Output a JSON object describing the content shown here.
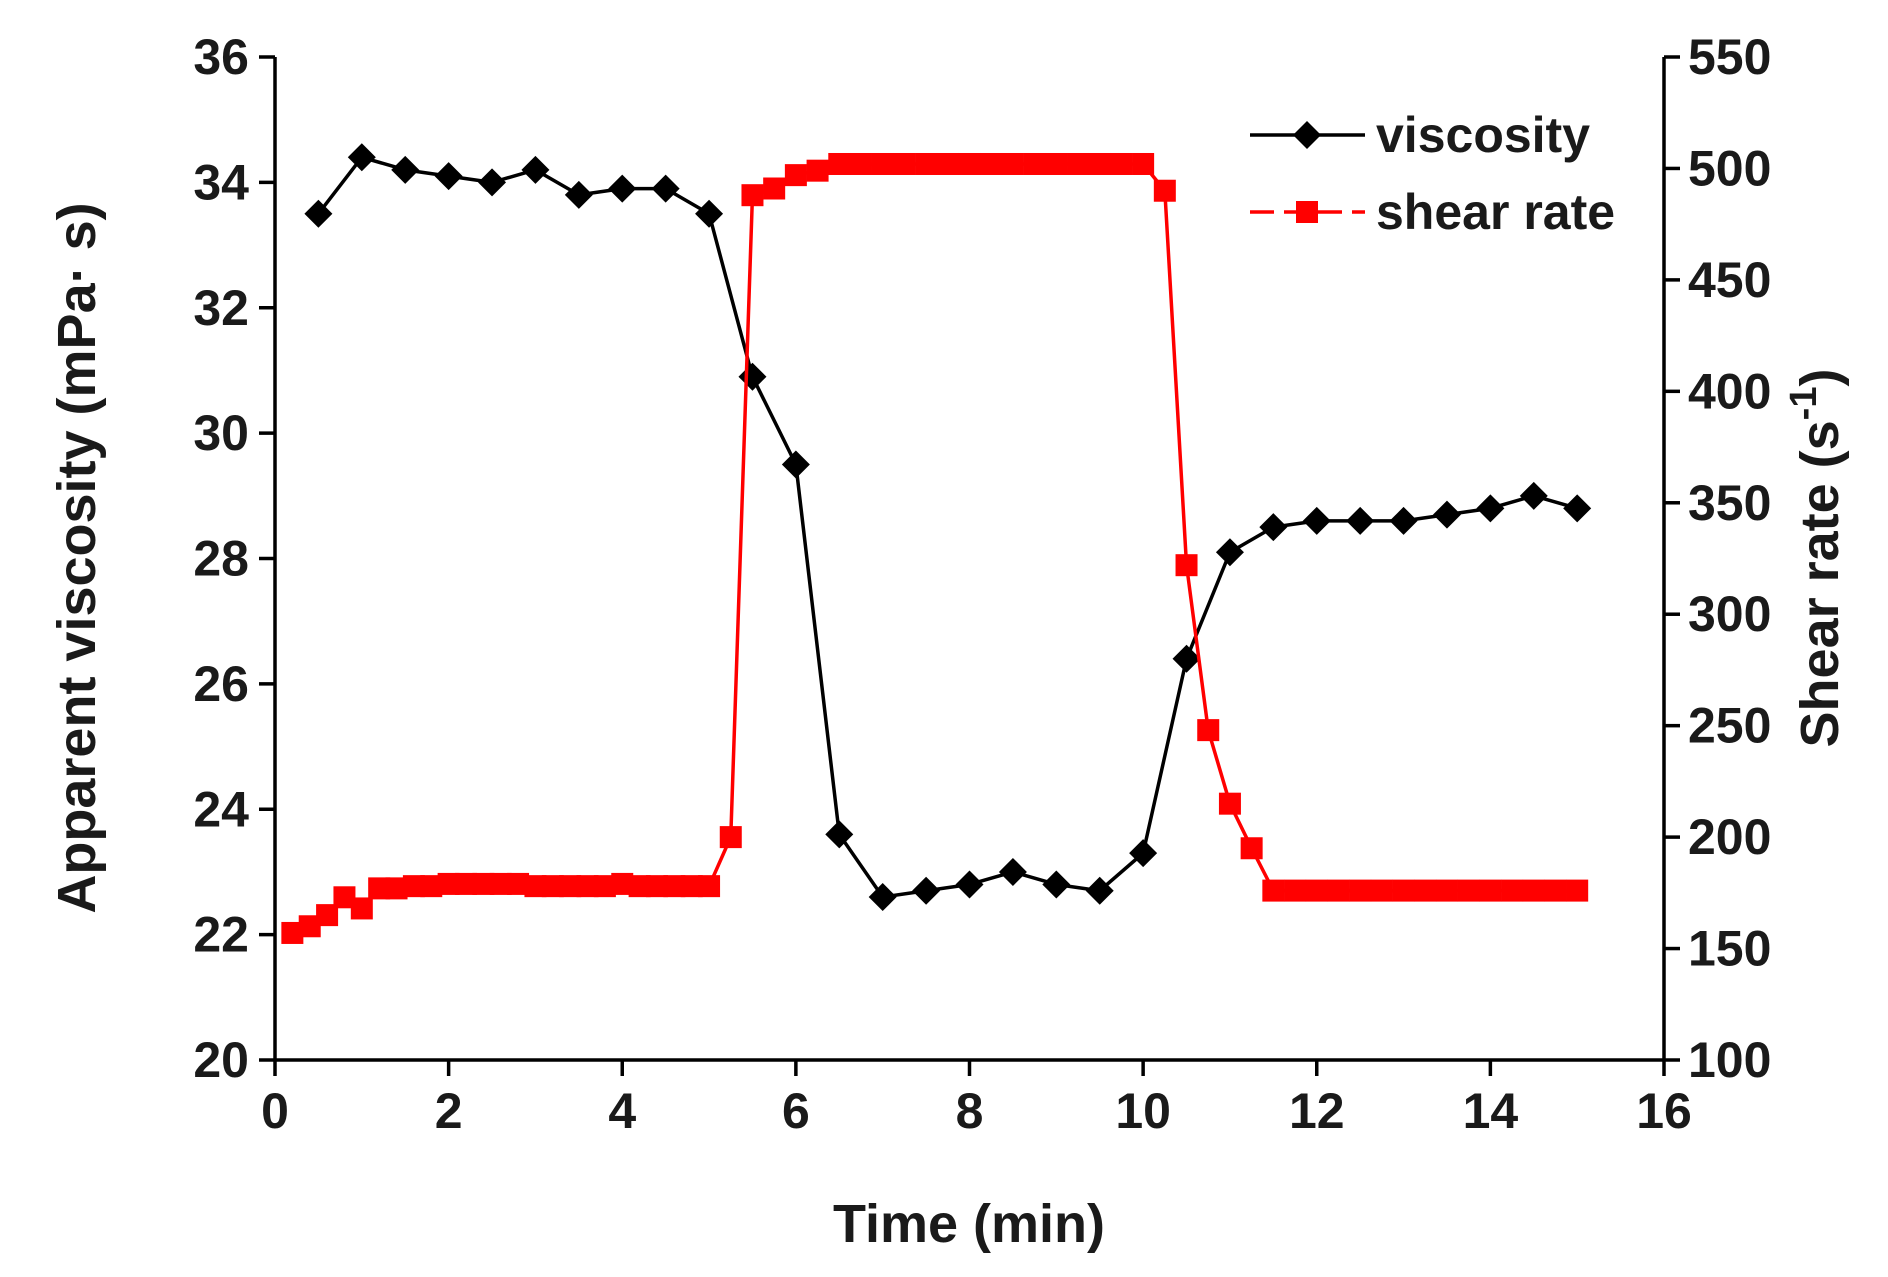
{
  "chart_data": {
    "type": "line",
    "xlabel": "Time (min)",
    "ylabel_left_main": "Apparent viscosity (mPa· s)",
    "ylabel_right_main": "Shear rate (s",
    "ylabel_right_sup": "-1",
    "ylabel_right_close": ")",
    "xlim": [
      0,
      16
    ],
    "ylim_left": [
      20,
      36
    ],
    "ylim_right": [
      100,
      550
    ],
    "x_ticks": [
      "0",
      "2",
      "4",
      "6",
      "8",
      "10",
      "12",
      "14",
      "16"
    ],
    "y_left_ticks": [
      "20",
      "22",
      "24",
      "26",
      "28",
      "30",
      "32",
      "34",
      "36"
    ],
    "y_right_ticks": [
      "100",
      "150",
      "200",
      "250",
      "300",
      "350",
      "400",
      "450",
      "500",
      "550"
    ],
    "legend_position": "top-right",
    "series": [
      {
        "name": "viscosity",
        "axis": "left",
        "color": "#000000",
        "marker": "diamond",
        "x": [
          0.5,
          1.0,
          1.5,
          2.0,
          2.5,
          3.0,
          3.5,
          4.0,
          4.5,
          5.0,
          5.5,
          6.0,
          6.5,
          7.0,
          7.5,
          8.0,
          8.5,
          9.0,
          9.5,
          10.0,
          10.5,
          11.0,
          11.5,
          12.0,
          12.5,
          13.0,
          13.5,
          14.0,
          14.5,
          15.0
        ],
        "y": [
          33.5,
          34.4,
          34.2,
          34.1,
          34.0,
          34.2,
          33.8,
          33.9,
          33.9,
          33.5,
          30.9,
          29.5,
          23.6,
          22.6,
          22.7,
          22.8,
          23.0,
          22.8,
          22.7,
          23.3,
          26.4,
          28.1,
          28.5,
          28.6,
          28.6,
          28.6,
          28.7,
          28.8,
          29.0,
          28.8
        ]
      },
      {
        "name": "shear rate",
        "axis": "right",
        "color": "#ff0000",
        "marker": "square",
        "x": [
          0.2,
          0.4,
          0.6,
          0.8,
          1.0,
          1.2,
          1.4,
          1.6,
          1.8,
          2.0,
          2.2,
          2.4,
          2.6,
          2.8,
          3.0,
          3.2,
          3.4,
          3.6,
          3.8,
          4.0,
          4.2,
          4.4,
          4.6,
          4.8,
          5.0,
          5.25,
          5.5,
          5.75,
          6.0,
          6.25,
          6.5,
          6.75,
          7.0,
          7.25,
          7.5,
          7.75,
          8.0,
          8.25,
          8.5,
          8.75,
          9.0,
          9.25,
          9.5,
          9.75,
          10.0,
          10.25,
          10.5,
          10.75,
          11.0,
          11.25,
          11.5,
          11.75,
          12.0,
          12.25,
          12.5,
          12.75,
          13.0,
          13.25,
          13.5,
          13.75,
          14.0,
          14.25,
          14.5,
          14.75,
          15.0
        ],
        "y": [
          157,
          160,
          165,
          173,
          168,
          177,
          177,
          178,
          178,
          179,
          179,
          179,
          179,
          179,
          178,
          178,
          178,
          178,
          178,
          179,
          178,
          178,
          178,
          178,
          178,
          200,
          488,
          491,
          497,
          499,
          502,
          502,
          502,
          502,
          502,
          502,
          502,
          502,
          502,
          502,
          502,
          502,
          502,
          502,
          502,
          490,
          322,
          248,
          215,
          195,
          176,
          176,
          176,
          176,
          176,
          176,
          176,
          176,
          176,
          176,
          176,
          176,
          176,
          176,
          176
        ]
      }
    ]
  }
}
